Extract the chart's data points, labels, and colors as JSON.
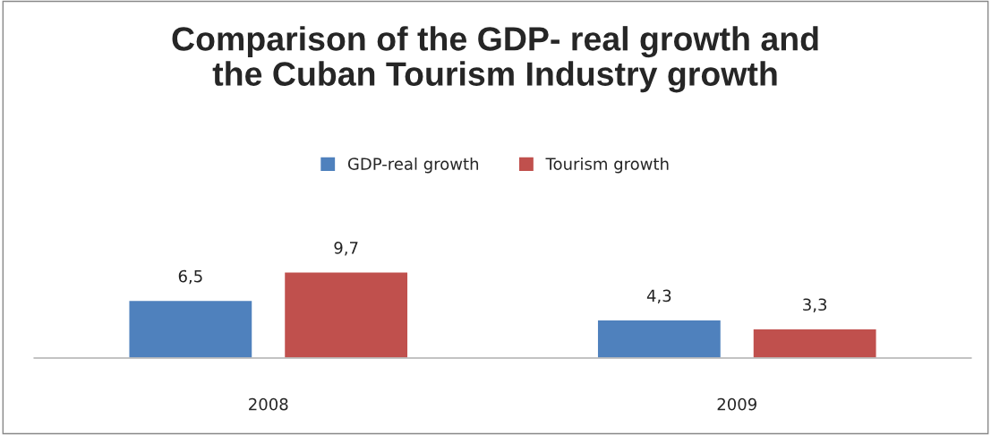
{
  "chart_data": {
    "type": "bar",
    "title": "Comparison of the GDP- real growth and\nthe Cuban Tourism Industry growth",
    "categories": [
      "2008",
      "2009"
    ],
    "series": [
      {
        "name": "GDP-real growth",
        "color": "#4f81bd",
        "values": [
          6.5,
          4.3
        ],
        "value_labels": [
          "6,5",
          "4,3"
        ]
      },
      {
        "name": "Tourism growth",
        "color": "#c0504d",
        "values": [
          9.7,
          3.3
        ],
        "value_labels": [
          "9,7",
          "3,3"
        ]
      }
    ],
    "tick_labels": "x",
    "legend": "top",
    "grid": false
  }
}
